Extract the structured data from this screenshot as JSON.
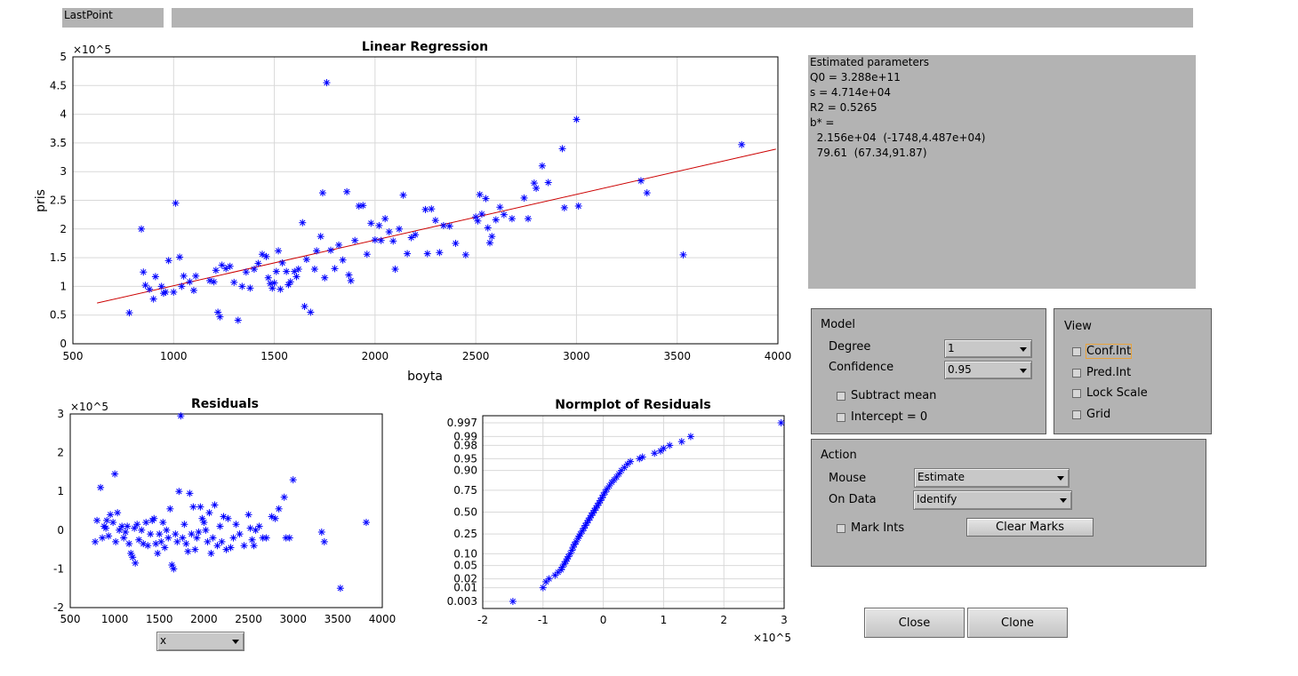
{
  "lastpoint": {
    "label": "LastPoint",
    "value": ""
  },
  "estimates": {
    "lines": [
      "Estimated parameters",
      "Q0 = 3.288e+11",
      "s = 4.714e+04",
      "R2 = 0.5265",
      "b* =",
      "  2.156e+04  (-1748,4.487e+04)",
      "  79.61  (67.34,91.87)"
    ]
  },
  "model": {
    "title": "Model",
    "degree_label": "Degree",
    "degree_value": "1",
    "confidence_label": "Confidence",
    "confidence_value": "0.95",
    "subtract_mean": "Subtract mean",
    "intercept_zero": "Intercept = 0"
  },
  "view": {
    "title": "View",
    "conf_int": "Conf.Int",
    "pred_int": "Pred.Int",
    "lock_scale": "Lock Scale",
    "grid": "Grid"
  },
  "action": {
    "title": "Action",
    "mouse_label": "Mouse",
    "mouse_value": "Estimate",
    "on_data_label": "On Data",
    "on_data_value": "Identify",
    "mark_ints": "Mark Ints",
    "clear_marks": "Clear Marks"
  },
  "buttons": {
    "close": "Close",
    "clone": "Clone"
  },
  "residual_selector": {
    "value": "x"
  },
  "colors": {
    "points": "#0000ff",
    "fit_line": "#cc0000",
    "panel": "#b3b3b3"
  },
  "chart_data": [
    {
      "type": "scatter",
      "title": "Linear Regression",
      "xlabel": "boyta",
      "ylabel": "pris",
      "y_exponent": "×10^5",
      "xlim": [
        500,
        4000
      ],
      "ylim": [
        0,
        500000
      ],
      "xticks": [
        "500",
        "1000",
        "1500",
        "2000",
        "2500",
        "3000",
        "3500",
        "4000"
      ],
      "yticks": [
        "0",
        "0.5",
        "1",
        "1.5",
        "2",
        "2.5",
        "3",
        "3.5",
        "4",
        "4.5",
        "5"
      ],
      "grid": true,
      "fit_line": {
        "x": [
          620,
          3990
        ],
        "y": [
          70940,
          339190
        ]
      },
      "points": [
        [
          780,
          54000
        ],
        [
          840,
          200000
        ],
        [
          850,
          125000
        ],
        [
          860,
          102000
        ],
        [
          880,
          95000
        ],
        [
          900,
          78000
        ],
        [
          910,
          117000
        ],
        [
          940,
          100000
        ],
        [
          950,
          88000
        ],
        [
          960,
          90000
        ],
        [
          975,
          145000
        ],
        [
          1000,
          90000
        ],
        [
          1010,
          245000
        ],
        [
          1030,
          151000
        ],
        [
          1040,
          100000
        ],
        [
          1050,
          118000
        ],
        [
          1080,
          108000
        ],
        [
          1100,
          93000
        ],
        [
          1110,
          118000
        ],
        [
          1180,
          110000
        ],
        [
          1200,
          108000
        ],
        [
          1210,
          128000
        ],
        [
          1220,
          55000
        ],
        [
          1230,
          47000
        ],
        [
          1240,
          137000
        ],
        [
          1260,
          131000
        ],
        [
          1280,
          135000
        ],
        [
          1300,
          107000
        ],
        [
          1320,
          41000
        ],
        [
          1340,
          100000
        ],
        [
          1360,
          125000
        ],
        [
          1380,
          97000
        ],
        [
          1400,
          130000
        ],
        [
          1420,
          140000
        ],
        [
          1440,
          156000
        ],
        [
          1460,
          152000
        ],
        [
          1470,
          115000
        ],
        [
          1480,
          105000
        ],
        [
          1490,
          97000
        ],
        [
          1500,
          106000
        ],
        [
          1510,
          126000
        ],
        [
          1520,
          162000
        ],
        [
          1530,
          95000
        ],
        [
          1540,
          141000
        ],
        [
          1560,
          126000
        ],
        [
          1570,
          103000
        ],
        [
          1580,
          108000
        ],
        [
          1600,
          126000
        ],
        [
          1610,
          117000
        ],
        [
          1620,
          130000
        ],
        [
          1640,
          211000
        ],
        [
          1650,
          65000
        ],
        [
          1660,
          147000
        ],
        [
          1680,
          55000
        ],
        [
          1700,
          130000
        ],
        [
          1710,
          162000
        ],
        [
          1730,
          187000
        ],
        [
          1740,
          263000
        ],
        [
          1750,
          115000
        ],
        [
          1760,
          455000
        ],
        [
          1780,
          163000
        ],
        [
          1800,
          131000
        ],
        [
          1820,
          172000
        ],
        [
          1840,
          146000
        ],
        [
          1860,
          265000
        ],
        [
          1870,
          120000
        ],
        [
          1880,
          110000
        ],
        [
          1900,
          180000
        ],
        [
          1920,
          240000
        ],
        [
          1940,
          241000
        ],
        [
          1960,
          156000
        ],
        [
          1980,
          210000
        ],
        [
          2000,
          181000
        ],
        [
          2020,
          206000
        ],
        [
          2030,
          180000
        ],
        [
          2050,
          218000
        ],
        [
          2070,
          195000
        ],
        [
          2090,
          179000
        ],
        [
          2100,
          130000
        ],
        [
          2120,
          200000
        ],
        [
          2140,
          259000
        ],
        [
          2160,
          157000
        ],
        [
          2180,
          185000
        ],
        [
          2200,
          190000
        ],
        [
          2250,
          234000
        ],
        [
          2260,
          157000
        ],
        [
          2280,
          235000
        ],
        [
          2300,
          215000
        ],
        [
          2320,
          159000
        ],
        [
          2340,
          206000
        ],
        [
          2370,
          205000
        ],
        [
          2400,
          175000
        ],
        [
          2450,
          155000
        ],
        [
          2500,
          221000
        ],
        [
          2510,
          214000
        ],
        [
          2520,
          260000
        ],
        [
          2530,
          226000
        ],
        [
          2550,
          253000
        ],
        [
          2560,
          202000
        ],
        [
          2570,
          176000
        ],
        [
          2580,
          187000
        ],
        [
          2600,
          216000
        ],
        [
          2620,
          238000
        ],
        [
          2640,
          225000
        ],
        [
          2680,
          218000
        ],
        [
          2740,
          254000
        ],
        [
          2760,
          218000
        ],
        [
          2790,
          280000
        ],
        [
          2800,
          271000
        ],
        [
          2830,
          310000
        ],
        [
          2860,
          281000
        ],
        [
          2930,
          340000
        ],
        [
          2940,
          237000
        ],
        [
          3000,
          391000
        ],
        [
          3010,
          240000
        ],
        [
          3320,
          284000
        ],
        [
          3350,
          263000
        ],
        [
          3530,
          155000
        ],
        [
          3820,
          347000
        ]
      ]
    },
    {
      "type": "scatter",
      "title": "Residuals",
      "y_exponent": "×10^5",
      "xlim": [
        500,
        4000
      ],
      "ylim": [
        -200000,
        300000
      ],
      "xticks": [
        "500",
        "1000",
        "1500",
        "2000",
        "2500",
        "3000",
        "3500",
        "4000"
      ],
      "yticks": [
        "-2",
        "-1",
        "0",
        "1",
        "2",
        "3"
      ],
      "points": [
        [
          780,
          -30000
        ],
        [
          800,
          25000
        ],
        [
          840,
          110000
        ],
        [
          860,
          -20000
        ],
        [
          880,
          10000
        ],
        [
          900,
          5000
        ],
        [
          910,
          25000
        ],
        [
          930,
          -15000
        ],
        [
          950,
          40000
        ],
        [
          980,
          20000
        ],
        [
          1000,
          145000
        ],
        [
          1010,
          -30000
        ],
        [
          1030,
          45000
        ],
        [
          1050,
          0
        ],
        [
          1080,
          10000
        ],
        [
          1100,
          -20000
        ],
        [
          1120,
          -5000
        ],
        [
          1140,
          10000
        ],
        [
          1160,
          -35000
        ],
        [
          1180,
          -60000
        ],
        [
          1200,
          -70000
        ],
        [
          1220,
          5000
        ],
        [
          1230,
          -85000
        ],
        [
          1250,
          15000
        ],
        [
          1270,
          -25000
        ],
        [
          1300,
          0
        ],
        [
          1320,
          -35000
        ],
        [
          1350,
          20000
        ],
        [
          1370,
          -40000
        ],
        [
          1400,
          -10000
        ],
        [
          1420,
          25000
        ],
        [
          1440,
          30000
        ],
        [
          1460,
          -35000
        ],
        [
          1480,
          -60000
        ],
        [
          1500,
          -10000
        ],
        [
          1520,
          -30000
        ],
        [
          1540,
          20000
        ],
        [
          1560,
          -45000
        ],
        [
          1580,
          0
        ],
        [
          1600,
          -20000
        ],
        [
          1620,
          55000
        ],
        [
          1640,
          -90000
        ],
        [
          1660,
          -100000
        ],
        [
          1680,
          -10000
        ],
        [
          1700,
          -30000
        ],
        [
          1720,
          100000
        ],
        [
          1740,
          295000
        ],
        [
          1760,
          -20000
        ],
        [
          1780,
          15000
        ],
        [
          1800,
          -35000
        ],
        [
          1820,
          -55000
        ],
        [
          1840,
          95000
        ],
        [
          1860,
          -10000
        ],
        [
          1880,
          60000
        ],
        [
          1900,
          -50000
        ],
        [
          1920,
          -20000
        ],
        [
          1940,
          -5000
        ],
        [
          1960,
          60000
        ],
        [
          1980,
          30000
        ],
        [
          2000,
          20000
        ],
        [
          2020,
          0
        ],
        [
          2040,
          -30000
        ],
        [
          2060,
          45000
        ],
        [
          2080,
          -60000
        ],
        [
          2100,
          -20000
        ],
        [
          2120,
          65000
        ],
        [
          2150,
          -40000
        ],
        [
          2180,
          10000
        ],
        [
          2200,
          -30000
        ],
        [
          2220,
          35000
        ],
        [
          2250,
          -50000
        ],
        [
          2270,
          30000
        ],
        [
          2300,
          -45000
        ],
        [
          2330,
          -20000
        ],
        [
          2360,
          15000
        ],
        [
          2400,
          -10000
        ],
        [
          2450,
          -40000
        ],
        [
          2500,
          40000
        ],
        [
          2520,
          5000
        ],
        [
          2540,
          -25000
        ],
        [
          2560,
          -40000
        ],
        [
          2580,
          0
        ],
        [
          2620,
          10000
        ],
        [
          2660,
          -20000
        ],
        [
          2700,
          -20000
        ],
        [
          2760,
          35000
        ],
        [
          2800,
          30000
        ],
        [
          2840,
          55000
        ],
        [
          2900,
          85000
        ],
        [
          2920,
          -20000
        ],
        [
          2960,
          -20000
        ],
        [
          3000,
          130000
        ],
        [
          3320,
          -5000
        ],
        [
          3350,
          -30000
        ],
        [
          3530,
          -150000
        ],
        [
          3820,
          20000
        ]
      ]
    },
    {
      "type": "scatter",
      "title": "Normplot of Residuals",
      "x_exponent": "×10^5",
      "xlim": [
        -200000,
        300000
      ],
      "xticks": [
        "-2",
        "-1",
        "0",
        "1",
        "2",
        "3"
      ],
      "yticks": [
        "0.003",
        "0.01",
        "0.02",
        "0.05",
        "0.10",
        "0.25",
        "0.50",
        "0.75",
        "0.90",
        "0.95",
        "0.98",
        "0.99",
        "0.997"
      ],
      "grid": true,
      "points": [
        [
          -150000,
          0.003
        ],
        [
          -100000,
          0.01
        ],
        [
          -95000,
          0.016
        ],
        [
          -90000,
          0.02
        ],
        [
          -80000,
          0.026
        ],
        [
          -75000,
          0.032
        ],
        [
          -70000,
          0.038
        ],
        [
          -68000,
          0.045
        ],
        [
          -65000,
          0.055
        ],
        [
          -62000,
          0.065
        ],
        [
          -60000,
          0.075
        ],
        [
          -58000,
          0.085
        ],
        [
          -55000,
          0.1
        ],
        [
          -52000,
          0.12
        ],
        [
          -50000,
          0.14
        ],
        [
          -48000,
          0.16
        ],
        [
          -45000,
          0.18
        ],
        [
          -42000,
          0.21
        ],
        [
          -40000,
          0.23
        ],
        [
          -38000,
          0.25
        ],
        [
          -35000,
          0.28
        ],
        [
          -32000,
          0.31
        ],
        [
          -30000,
          0.34
        ],
        [
          -27000,
          0.37
        ],
        [
          -25000,
          0.4
        ],
        [
          -22000,
          0.43
        ],
        [
          -20000,
          0.46
        ],
        [
          -17000,
          0.49
        ],
        [
          -15000,
          0.52
        ],
        [
          -12000,
          0.55
        ],
        [
          -10000,
          0.58
        ],
        [
          -7000,
          0.61
        ],
        [
          -5000,
          0.64
        ],
        [
          -2000,
          0.67
        ],
        [
          0,
          0.7
        ],
        [
          3000,
          0.73
        ],
        [
          6000,
          0.76
        ],
        [
          10000,
          0.79
        ],
        [
          14000,
          0.82
        ],
        [
          18000,
          0.84
        ],
        [
          22000,
          0.86
        ],
        [
          26000,
          0.88
        ],
        [
          30000,
          0.9
        ],
        [
          35000,
          0.915
        ],
        [
          40000,
          0.93
        ],
        [
          45000,
          0.94
        ],
        [
          60000,
          0.95
        ],
        [
          65000,
          0.955
        ],
        [
          85000,
          0.965
        ],
        [
          95000,
          0.97
        ],
        [
          100000,
          0.975
        ],
        [
          110000,
          0.98
        ],
        [
          130000,
          0.985
        ],
        [
          145000,
          0.99
        ],
        [
          295000,
          0.997
        ]
      ]
    }
  ]
}
